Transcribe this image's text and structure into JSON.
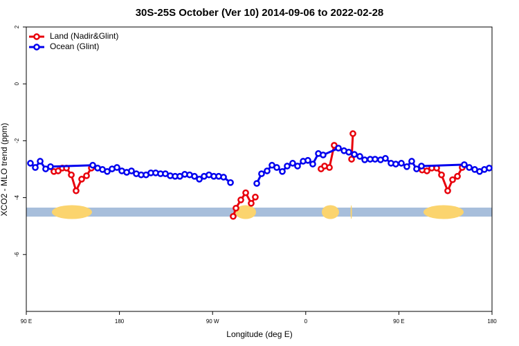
{
  "chart_data": {
    "type": "line",
    "title": "30S-25S October (Ver 10)   2014-09-06 to 2022-02-28",
    "x_label": "Longitude (deg E)",
    "y_label": "XCO2 - MLO trend (ppm)",
    "xlim": [
      90,
      540
    ],
    "xticks": [
      {
        "value": 90,
        "label": "90 E"
      },
      180,
      {
        "value": 270,
        "label": "90 W"
      },
      {
        "value": 360,
        "label": "0"
      },
      {
        "value": 450,
        "label": "90 E"
      },
      {
        "value": 540,
        "label": "180"
      }
    ],
    "ylim": [
      -8,
      2
    ],
    "yticks": [
      -6,
      -4,
      -2,
      0,
      2
    ],
    "legend": "topleft",
    "land_color": "#fbd46e",
    "sea_color": "#a7bedb",
    "land_ranges": [
      [
        114.7,
        153.5
      ],
      [
        291.9,
        312
      ],
      [
        375.5,
        392.2
      ],
      [
        403.5,
        404.5
      ],
      [
        473.8,
        512.6
      ]
    ],
    "series": [
      {
        "name": "Land (Nadir&Glint)",
        "color": "#e8000b",
        "x": [
          116.7,
          120.8,
          124.8,
          128.8,
          133.5,
          138.1,
          143.5,
          148.2,
          152.9,
          200,
          289.9,
          292.6,
          297.3,
          302.0,
          307.3,
          311.3,
          340,
          374.8,
          378.2,
          382.9,
          387.5,
          395,
          404.3,
          405.6,
          440,
          472.5,
          477.1,
          481.8,
          486.5,
          491.2,
          497.2,
          501.9,
          506.6,
          511.2
        ],
        "values": [
          -3.08,
          -3.06,
          -2.96,
          -2.96,
          -3.2,
          -3.76,
          -3.35,
          -3.23,
          -2.96,
          null,
          -4.66,
          -4.37,
          -4.08,
          -3.83,
          -4.2,
          -3.98,
          null,
          -2.99,
          -2.89,
          -2.94,
          -2.16,
          null,
          -2.65,
          -1.75,
          null,
          -3.03,
          -3.06,
          -2.96,
          -2.96,
          -3.2,
          -3.76,
          -3.37,
          -3.25,
          -2.94
        ]
      },
      {
        "name": "Ocean (Glint)",
        "color": "#0000ee",
        "x": [
          94.0,
          98.7,
          103.4,
          108.7,
          113.4,
          154.2,
          158.9,
          163.6,
          168.2,
          172.9,
          177.6,
          182.3,
          187.0,
          191.6,
          196.3,
          201.0,
          205.7,
          210.4,
          215.0,
          219.7,
          224.4,
          229.1,
          233.8,
          238.4,
          243.1,
          247.8,
          252.5,
          257.2,
          261.8,
          266.5,
          271.2,
          275.9,
          280.6,
          287.3,
          300,
          312.7,
          317.3,
          322.7,
          327.4,
          332.0,
          337.4,
          342.1,
          347.4,
          352.1,
          357.5,
          362.1,
          366.8,
          372.2,
          376.8,
          391.6,
          397.0,
          401.6,
          407.0,
          412.3,
          417.0,
          422.3,
          427.0,
          432.3,
          437.0,
          442.4,
          447.0,
          452.4,
          457.7,
          462.4,
          467.1,
          471.8,
          513.2,
          518.0,
          523.3,
          528.0,
          532.6,
          537.3
        ],
        "values": [
          -2.79,
          -2.94,
          -2.72,
          -2.99,
          -2.91,
          -2.86,
          -2.96,
          -3.01,
          -3.08,
          -2.99,
          -2.94,
          -3.06,
          -3.11,
          -3.06,
          -3.16,
          -3.2,
          -3.2,
          -3.13,
          -3.13,
          -3.16,
          -3.16,
          -3.23,
          -3.25,
          -3.25,
          -3.18,
          -3.2,
          -3.25,
          -3.35,
          -3.25,
          -3.2,
          -3.25,
          -3.25,
          -3.28,
          -3.47,
          null,
          -3.5,
          -3.16,
          -3.06,
          -2.86,
          -2.94,
          -3.08,
          -2.89,
          -2.79,
          -2.89,
          -2.72,
          -2.69,
          -2.82,
          -2.45,
          -2.5,
          -2.26,
          -2.35,
          -2.4,
          -2.48,
          -2.55,
          -2.67,
          -2.65,
          -2.65,
          -2.67,
          -2.62,
          -2.79,
          -2.82,
          -2.79,
          -2.91,
          -2.72,
          -2.99,
          -2.89,
          -2.84,
          -2.94,
          -3.01,
          -3.08,
          -3.01,
          -2.96
        ]
      }
    ]
  }
}
